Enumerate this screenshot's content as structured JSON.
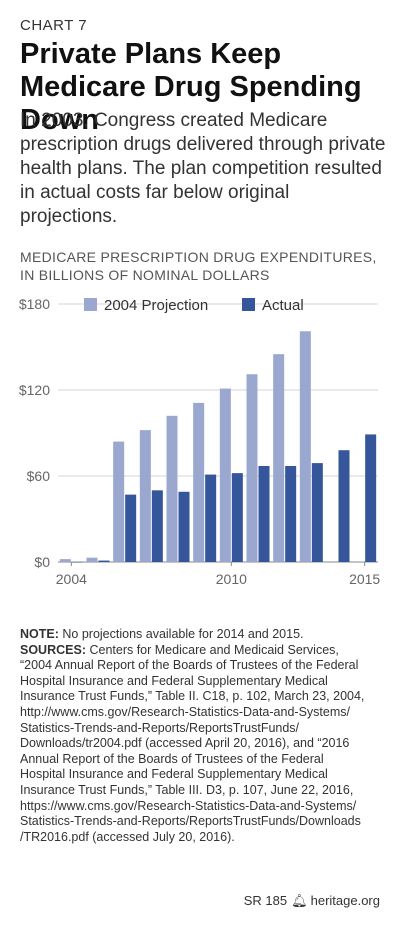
{
  "header": {
    "label": "CHART 7",
    "title": "Private Plans Keep Medicare Drug Spending Down",
    "subtitle": "In 2003, Congress created Medicare prescription drugs delivered through private health plans. The plan competition resulted in actual costs far below original projections."
  },
  "chart_data": {
    "type": "bar",
    "title_lines": [
      "MEDICARE PRESCRIPTION DRUG EXPENDITURES,",
      "IN BILLIONS OF NOMINAL DOLLARS"
    ],
    "categories": [
      2004,
      2005,
      2006,
      2007,
      2008,
      2009,
      2010,
      2011,
      2012,
      2013,
      2014,
      2015
    ],
    "x_tick_labels": [
      "2004",
      "2010",
      "2015"
    ],
    "y_tick_labels": [
      "$0",
      "$60",
      "$120",
      "$180"
    ],
    "ylim": [
      0,
      180
    ],
    "legend_position": "top",
    "series": [
      {
        "name": "2004 Projection",
        "color": "#9aa8d0",
        "values": [
          2,
          3,
          84,
          92,
          102,
          111,
          121,
          131,
          145,
          161,
          null,
          null
        ]
      },
      {
        "name": "Actual",
        "color": "#35569b",
        "values": [
          0,
          1,
          47,
          50,
          49,
          61,
          62,
          67,
          67,
          69,
          78,
          89
        ]
      }
    ]
  },
  "notes": {
    "note_label": "NOTE:",
    "note_text": "No projections available for 2014 and 2015.",
    "sources_label": "SOURCES:",
    "sources_lines": [
      "Centers for Medicare and Medicaid Services,",
      "“2004 Annual Report of the Boards of Trustees of the Federal",
      "Hospital Insurance and Federal Supplementary Medical",
      "Insurance Trust Funds,” Table II. C18, p. 102, March 23, 2004,",
      "http://www.cms.gov/Research-Statistics-Data-and-Systems/",
      "Statistics-Trends-and-Reports/ReportsTrustFunds/",
      "Downloads/tr2004.pdf (accessed April 20, 2016), and “2016",
      "Annual Report of the Boards of Trustees of the Federal",
      "Hospital Insurance and Federal Supplementary Medical",
      "Insurance Trust Funds,” Table III. D3, p. 107, June 22, 2016,",
      "https://www.cms.gov/Research-Statistics-Data-and-Systems/",
      "Statistics-Trends-and-Reports/ReportsTrustFunds/Downloads",
      "/TR2016.pdf (accessed July 20, 2016)."
    ]
  },
  "footer": {
    "report": "SR 185",
    "site": "heritage.org"
  }
}
